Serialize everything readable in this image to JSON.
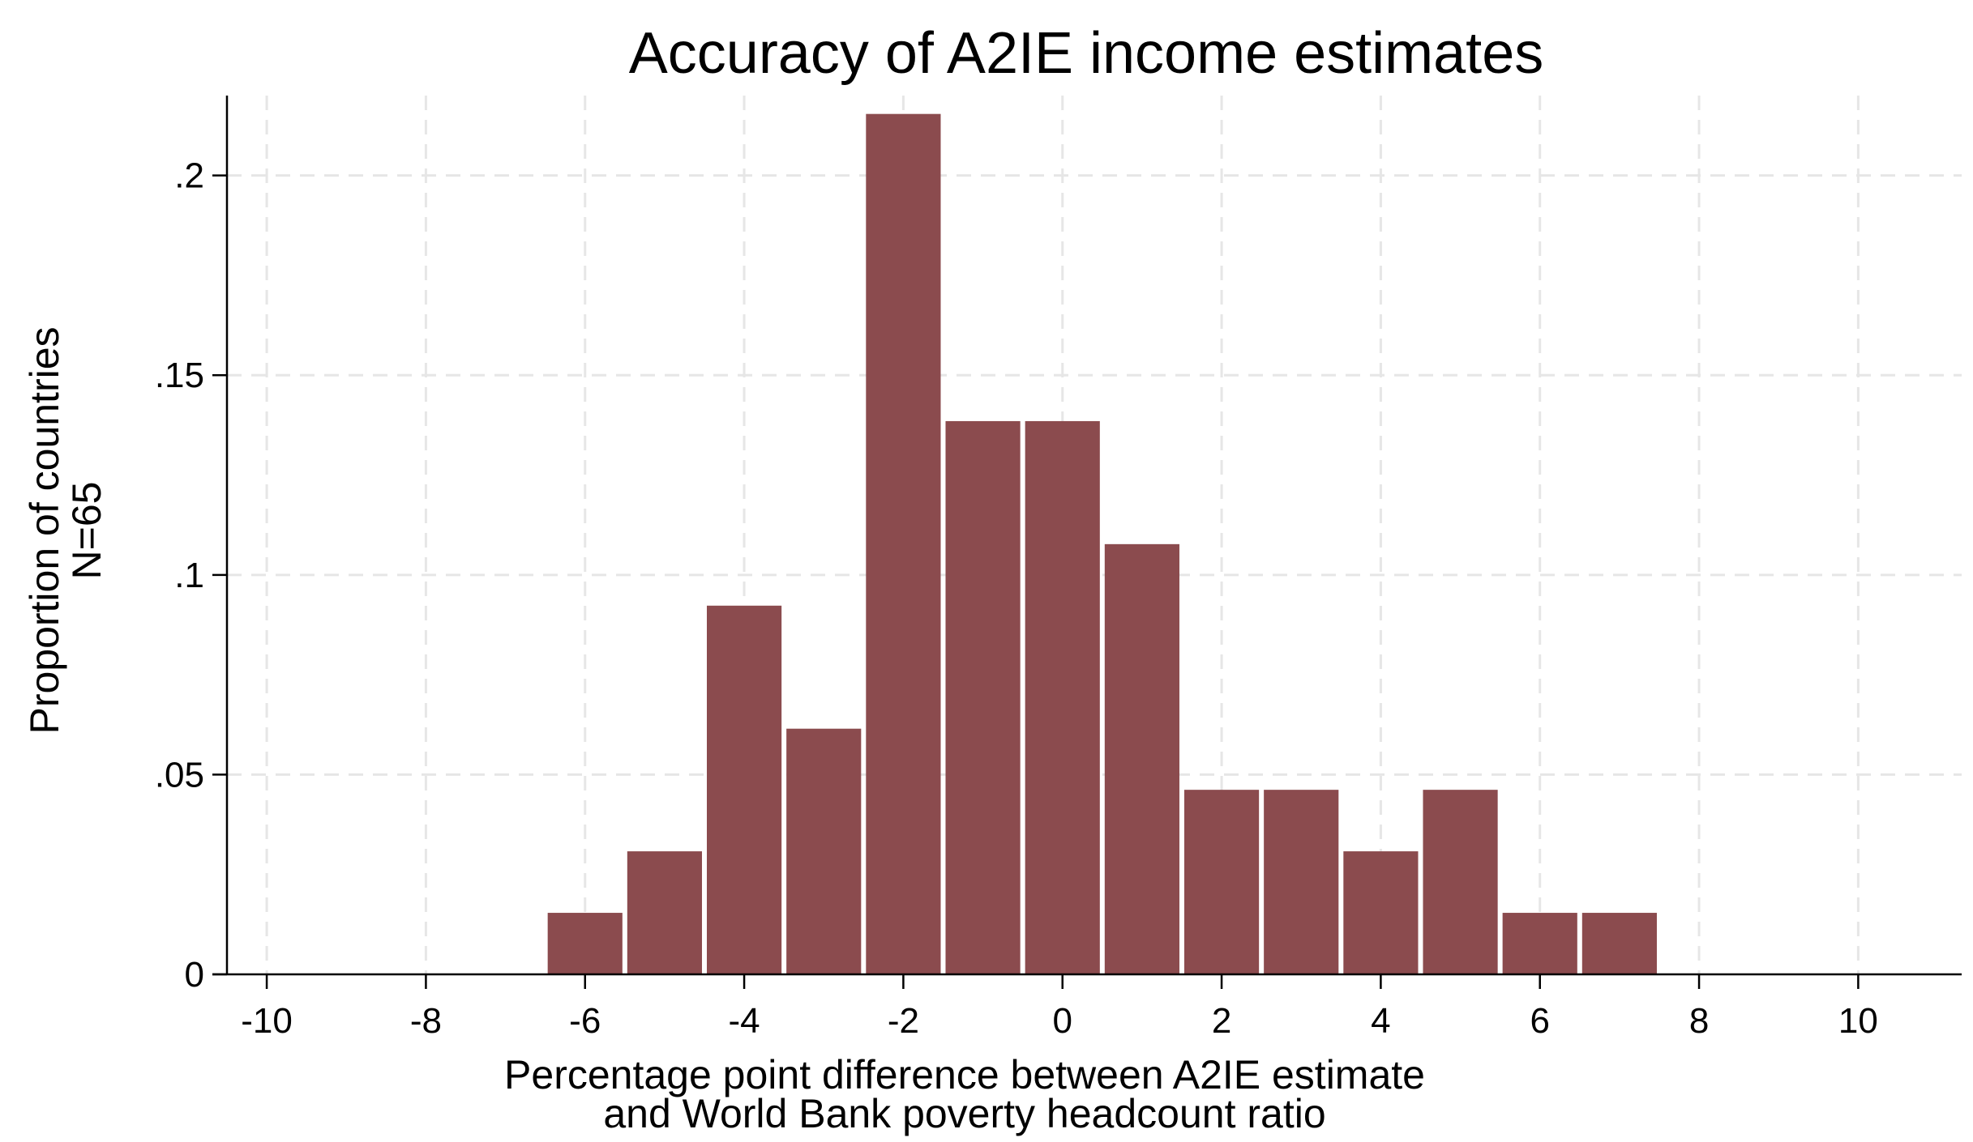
{
  "chart_data": {
    "type": "bar",
    "title": "Accuracy of A2IE income estimates",
    "xlabel": [
      "Percentage point difference between A2IE estimate",
      "and World Bank poverty headcount ratio"
    ],
    "ylabel": [
      "Proportion of countries",
      "N=65"
    ],
    "xlim": [
      -10.5,
      11.3
    ],
    "ylim": [
      0,
      0.22
    ],
    "xticks": [
      -10,
      -8,
      -6,
      -4,
      -2,
      0,
      2,
      4,
      6,
      8,
      10
    ],
    "xtick_labels": [
      "-10",
      "-8",
      "-6",
      "-4",
      "-2",
      "0",
      "2",
      "4",
      "6",
      "8",
      "10"
    ],
    "yticks": [
      0,
      0.05,
      0.1,
      0.15,
      0.2
    ],
    "ytick_labels": [
      "0",
      ".05",
      ".1",
      ".15",
      ".2"
    ],
    "grid": true,
    "bar_color": "#8b4b4e",
    "bin_width": 1,
    "bins": [
      {
        "x": -6,
        "value": 0.0154
      },
      {
        "x": -5,
        "value": 0.0308
      },
      {
        "x": -4,
        "value": 0.0923
      },
      {
        "x": -3,
        "value": 0.0615
      },
      {
        "x": -2,
        "value": 0.2154
      },
      {
        "x": -1,
        "value": 0.1385
      },
      {
        "x": 0,
        "value": 0.1385
      },
      {
        "x": 1,
        "value": 0.1077
      },
      {
        "x": 2,
        "value": 0.0462
      },
      {
        "x": 3,
        "value": 0.0462
      },
      {
        "x": 4,
        "value": 0.0308
      },
      {
        "x": 5,
        "value": 0.0462
      },
      {
        "x": 6,
        "value": 0.0154
      },
      {
        "x": 7,
        "value": 0.0154
      }
    ]
  }
}
